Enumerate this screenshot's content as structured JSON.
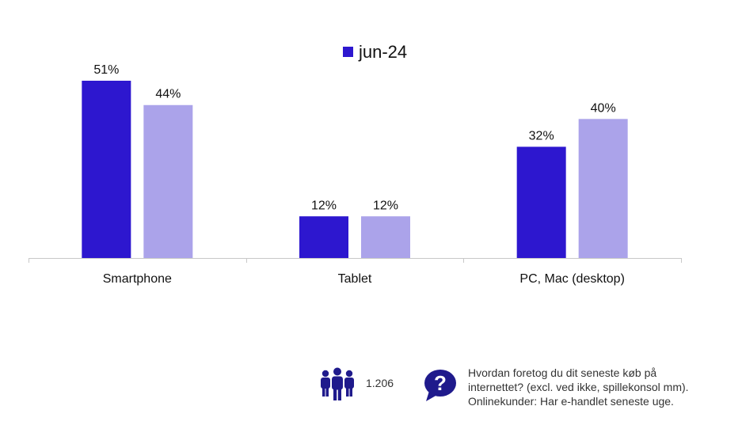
{
  "chart_data": {
    "type": "bar",
    "categories": [
      "Smartphone",
      "Tablet",
      "PC, Mac (desktop)"
    ],
    "series": [
      {
        "name": "jun-24",
        "values": [
          51,
          12,
          32
        ],
        "color": "#2d17cf",
        "labels": [
          "51%",
          "12%",
          "32%"
        ]
      },
      {
        "name": "",
        "values": [
          44,
          12,
          40
        ],
        "color": "#aba3ea",
        "labels": [
          "44%",
          "12%",
          "40%"
        ]
      }
    ],
    "legend": {
      "entries": [
        "jun-24"
      ],
      "placement": "top-center"
    },
    "ylim": [
      0,
      51
    ],
    "grid": false,
    "value_format": "percent"
  },
  "footer": {
    "sample_size": "1.206",
    "people_icon": "people-group-icon",
    "question_icon": "question-bubble-icon",
    "question_lines": [
      "Hvordan foretog du dit seneste køb på",
      "internettet? (excl. ved ikke, spillekonsol mm).",
      "Onlinekunder: Har e-handlet seneste uge."
    ],
    "accent_color": "#1f1a8c"
  }
}
